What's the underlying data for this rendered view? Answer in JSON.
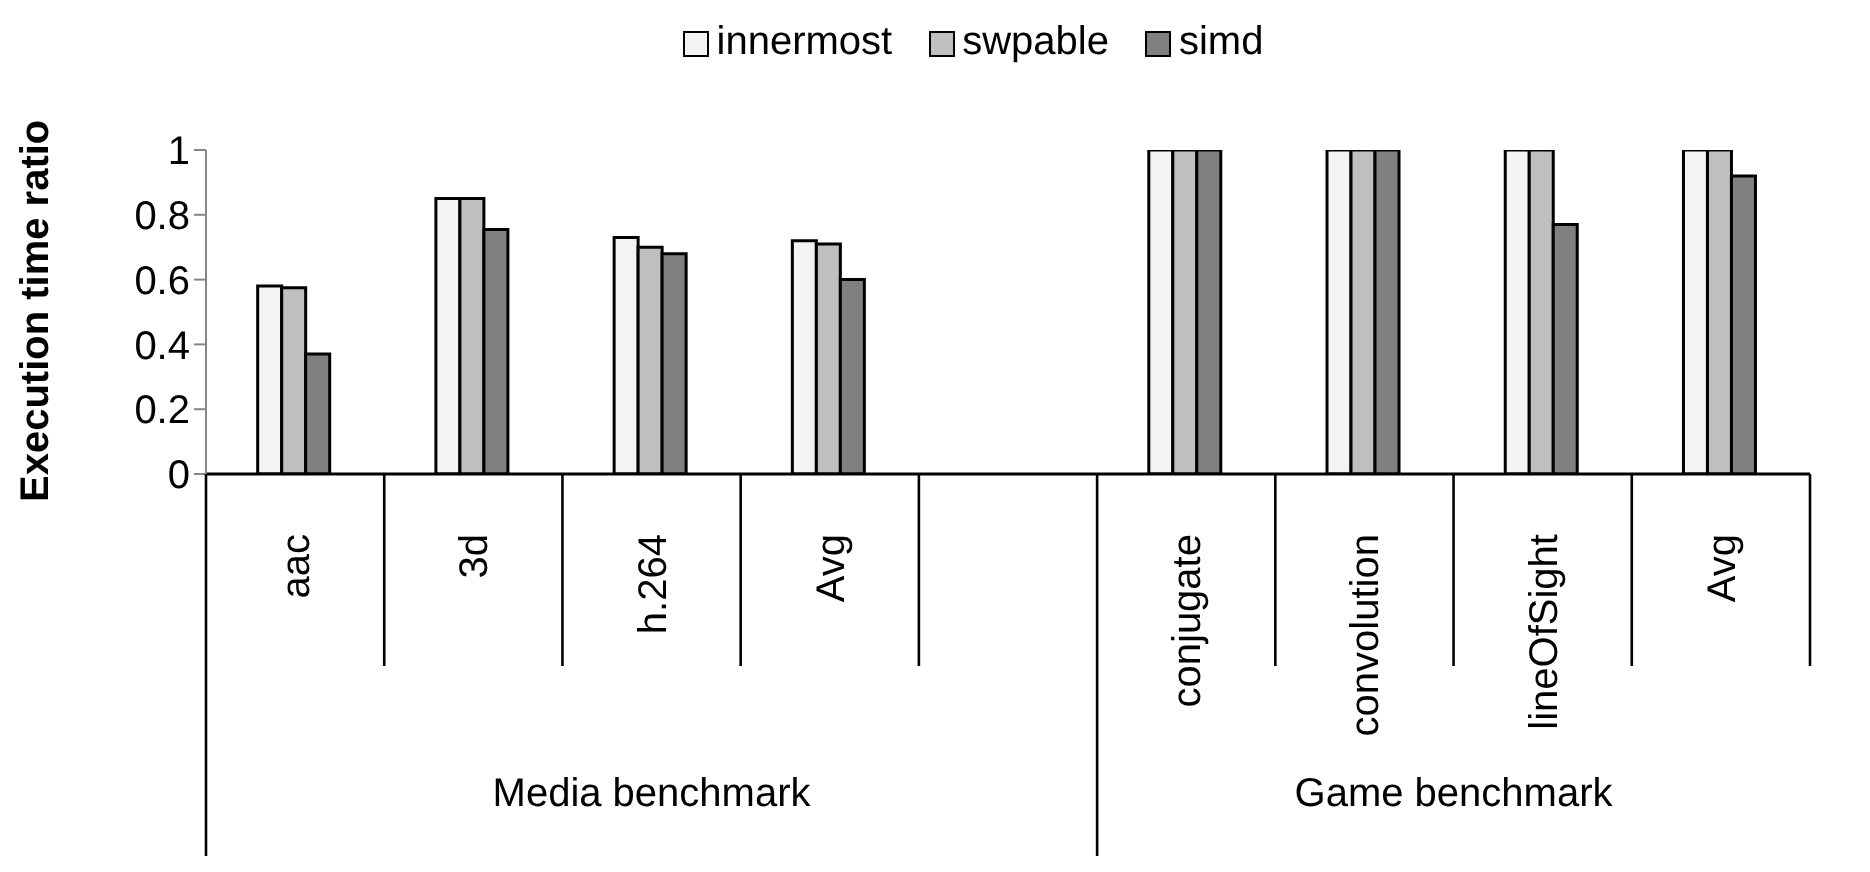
{
  "chart_data": {
    "type": "bar",
    "ylabel": "Execution time ratio",
    "categories": [
      "aac",
      "3d",
      "h.264",
      "Avg",
      null,
      "conjugate",
      "convolution",
      "lineOfSight",
      "Avg"
    ],
    "series": [
      {
        "name": "innermost",
        "color": "#f2f3f5",
        "values": [
          0.58,
          0.85,
          0.73,
          0.72,
          null,
          1,
          1,
          1,
          1
        ]
      },
      {
        "name": "swpable",
        "color": "#bfbfbf",
        "values": [
          0.575,
          0.85,
          0.7,
          0.71,
          null,
          1,
          1,
          1,
          1
        ]
      },
      {
        "name": "simd",
        "color": "#808080",
        "values": [
          0.37,
          0.755,
          0.68,
          0.6,
          null,
          1,
          1,
          0.77,
          0.92
        ]
      }
    ],
    "ylim": [
      0,
      1
    ],
    "yticks": [
      0,
      0.2,
      0.4,
      0.6,
      0.8,
      1
    ],
    "legend": "top",
    "annotations": [
      "Media benchmark",
      "Game benchmark"
    ]
  }
}
